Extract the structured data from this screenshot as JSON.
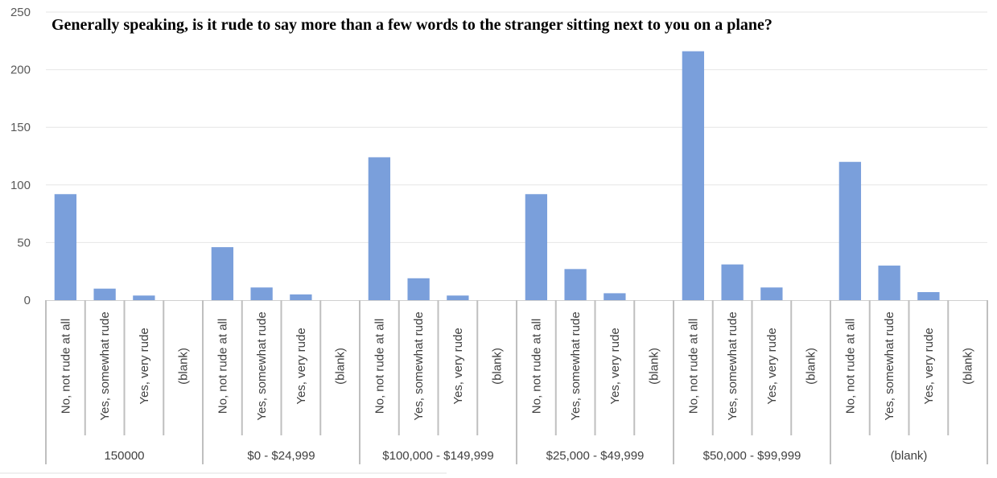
{
  "chart_data": {
    "type": "bar",
    "title": "Generally speaking, is it rude to say more than a few words to the stranger sitting next to you on a plane?",
    "xlabel": "",
    "ylabel": "",
    "ylim": [
      0,
      250
    ],
    "yticks": [
      0,
      50,
      100,
      150,
      200,
      250
    ],
    "grid": true,
    "legend": "none",
    "bar_color": "#7a9fdb",
    "categories": [
      "No, not rude at all",
      "Yes, somewhat rude",
      "Yes, very rude",
      "(blank)"
    ],
    "groups": [
      {
        "label": "150000",
        "values": [
          92,
          10,
          4,
          0
        ]
      },
      {
        "label": "$0 - $24,999",
        "values": [
          46,
          11,
          5,
          0
        ]
      },
      {
        "label": "$100,000 - $149,999",
        "values": [
          124,
          19,
          4,
          0
        ]
      },
      {
        "label": "$25,000 - $49,999",
        "values": [
          92,
          27,
          6,
          0
        ]
      },
      {
        "label": "$50,000 - $99,999",
        "values": [
          216,
          31,
          11,
          0
        ]
      },
      {
        "label": "(blank)",
        "values": [
          120,
          30,
          7,
          0
        ]
      }
    ]
  }
}
